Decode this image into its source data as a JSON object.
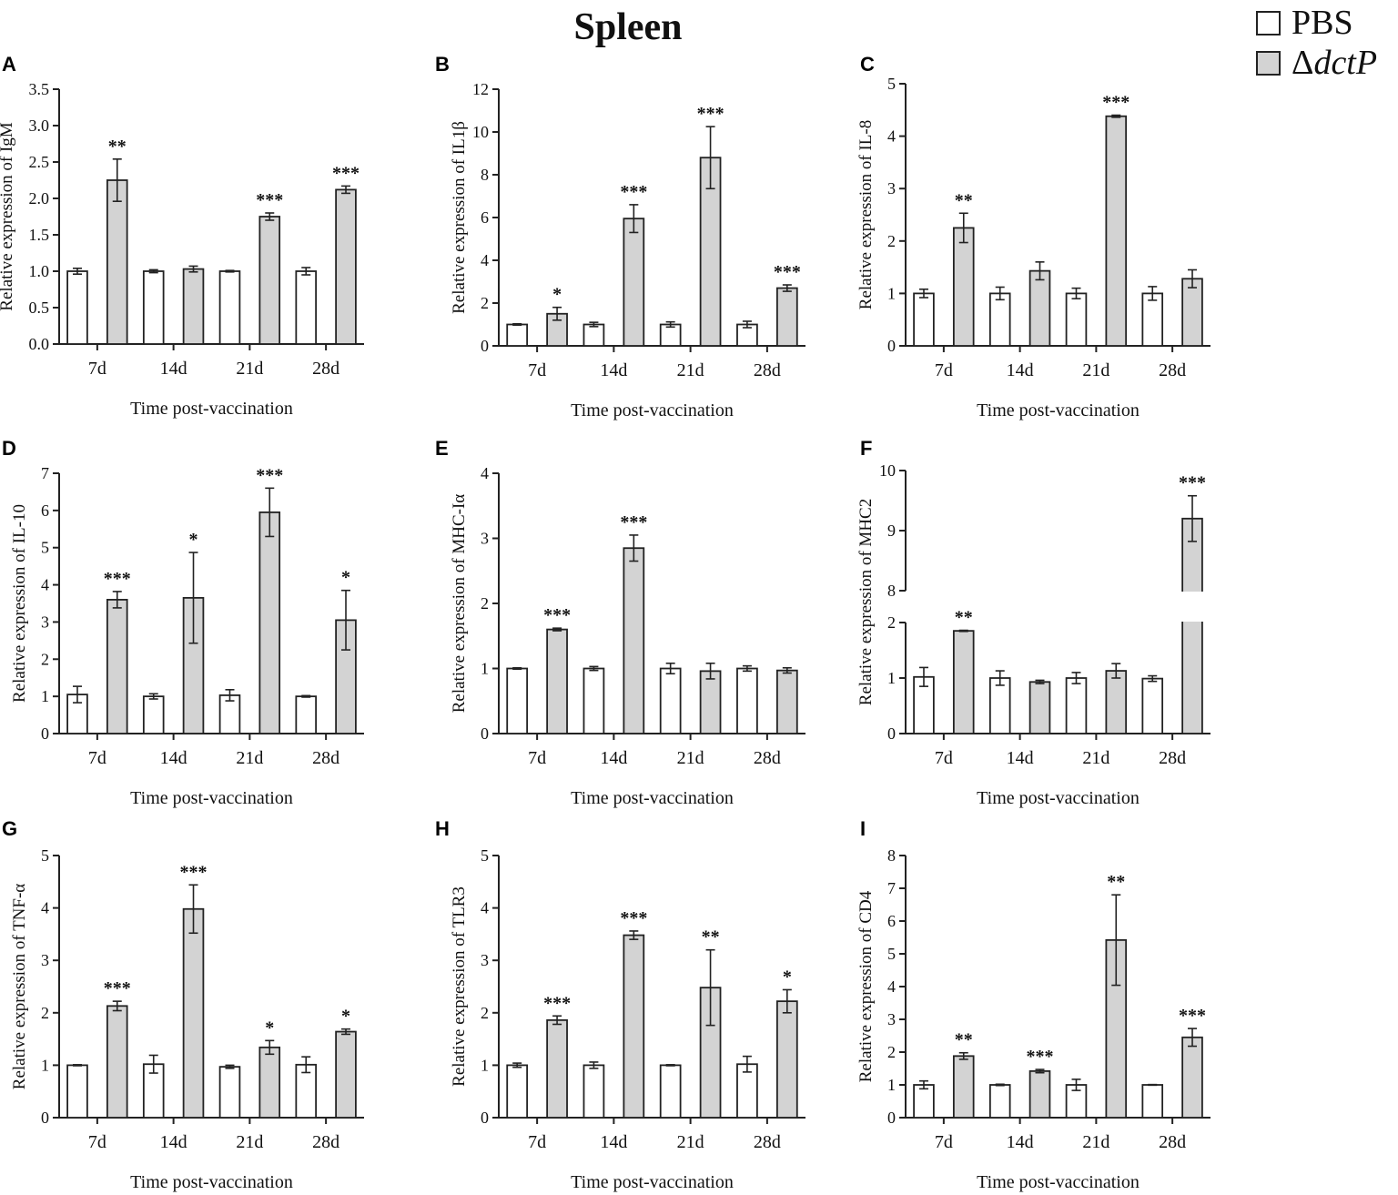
{
  "figure_title": "Spleen",
  "legend": {
    "items": [
      {
        "label": "PBS",
        "color": "#ffffff"
      },
      {
        "label_prefix": "Δ",
        "label_italic": "dctP",
        "color": "#d3d3d3"
      }
    ]
  },
  "colors": {
    "pbs": "#ffffff",
    "dctp": "#d3d3d3",
    "stroke": "#222222"
  },
  "chart_data": [
    {
      "letter": "A",
      "type": "bar",
      "ylabel": "Relative expression of IgM",
      "xlabel": "Time post-vaccination",
      "categories": [
        "7d",
        "14d",
        "21d",
        "28d"
      ],
      "ylim": [
        0,
        3.5
      ],
      "yticks": [
        "0.0",
        "0.5",
        "1.0",
        "1.5",
        "2.0",
        "2.5",
        "3.0",
        "3.5"
      ],
      "series": [
        {
          "name": "PBS",
          "values": [
            1.0,
            1.0,
            1.0,
            1.0
          ],
          "errors": [
            0.04,
            0.02,
            0.01,
            0.05
          ]
        },
        {
          "name": "ΔdctP",
          "values": [
            2.25,
            1.03,
            1.75,
            2.12
          ],
          "errors": [
            0.29,
            0.04,
            0.05,
            0.05
          ]
        }
      ],
      "significance": [
        "**",
        "",
        "***",
        "***"
      ]
    },
    {
      "letter": "B",
      "type": "bar",
      "ylabel": "Relative expression of IL1β",
      "xlabel": "Time post-vaccination",
      "categories": [
        "7d",
        "14d",
        "21d",
        "28d"
      ],
      "ylim": [
        0,
        12
      ],
      "yticks": [
        "0",
        "2",
        "4",
        "6",
        "8",
        "10",
        "12"
      ],
      "series": [
        {
          "name": "PBS",
          "values": [
            1.0,
            1.0,
            1.0,
            1.0
          ],
          "errors": [
            0.03,
            0.1,
            0.12,
            0.15
          ]
        },
        {
          "name": "ΔdctP",
          "values": [
            1.5,
            5.95,
            8.8,
            2.7
          ],
          "errors": [
            0.3,
            0.65,
            1.45,
            0.15
          ]
        }
      ],
      "significance": [
        "*",
        "***",
        "***",
        "***"
      ]
    },
    {
      "letter": "C",
      "type": "bar",
      "ylabel": "Relative expression of IL-8",
      "xlabel": "Time post-vaccination",
      "categories": [
        "7d",
        "14d",
        "21d",
        "28d"
      ],
      "ylim": [
        0,
        5
      ],
      "yticks": [
        "0",
        "1",
        "2",
        "3",
        "4",
        "5"
      ],
      "series": [
        {
          "name": "PBS",
          "values": [
            1.0,
            1.0,
            1.0,
            1.0
          ],
          "errors": [
            0.08,
            0.12,
            0.1,
            0.13
          ]
        },
        {
          "name": "ΔdctP",
          "values": [
            2.25,
            1.43,
            4.38,
            1.28
          ],
          "errors": [
            0.28,
            0.17,
            0.02,
            0.17
          ]
        }
      ],
      "significance": [
        "**",
        "",
        "***",
        ""
      ]
    },
    {
      "letter": "D",
      "type": "bar",
      "ylabel": "Relative expression of IL-10",
      "xlabel": "Time post-vaccination",
      "categories": [
        "7d",
        "14d",
        "21d",
        "28d"
      ],
      "ylim": [
        0,
        7
      ],
      "yticks": [
        "0",
        "1",
        "2",
        "3",
        "4",
        "5",
        "6",
        "7"
      ],
      "series": [
        {
          "name": "PBS",
          "values": [
            1.05,
            1.0,
            1.03,
            1.0
          ],
          "errors": [
            0.22,
            0.07,
            0.15,
            0.02
          ]
        },
        {
          "name": "ΔdctP",
          "values": [
            3.6,
            3.65,
            5.95,
            3.05
          ],
          "errors": [
            0.22,
            1.22,
            0.65,
            0.8
          ]
        }
      ],
      "significance": [
        "***",
        "*",
        "***",
        "*"
      ]
    },
    {
      "letter": "E",
      "type": "bar",
      "ylabel": "Relative expression of MHC-Iα",
      "xlabel": "Time post-vaccination",
      "categories": [
        "7d",
        "14d",
        "21d",
        "28d"
      ],
      "ylim": [
        0,
        4
      ],
      "yticks": [
        "0",
        "1",
        "2",
        "3",
        "4"
      ],
      "series": [
        {
          "name": "PBS",
          "values": [
            1.0,
            1.0,
            1.0,
            1.0
          ],
          "errors": [
            0.01,
            0.03,
            0.08,
            0.04
          ]
        },
        {
          "name": "ΔdctP",
          "values": [
            1.6,
            2.85,
            0.96,
            0.97
          ],
          "errors": [
            0.02,
            0.2,
            0.12,
            0.04
          ]
        }
      ],
      "significance": [
        "***",
        "***",
        "",
        ""
      ]
    },
    {
      "letter": "F",
      "type": "bar",
      "ylabel": "Relative expression of MHC2",
      "xlabel": "Time post-vaccination",
      "categories": [
        "7d",
        "14d",
        "21d",
        "28d"
      ],
      "ylim": [
        0,
        10
      ],
      "axis_break": {
        "lower": [
          0,
          2
        ],
        "upper": [
          8,
          10
        ]
      },
      "yticks": [
        "0",
        "1",
        "2",
        "8",
        "9",
        "10"
      ],
      "series": [
        {
          "name": "PBS",
          "values": [
            1.02,
            1.0,
            1.0,
            0.99
          ],
          "errors": [
            0.17,
            0.13,
            0.1,
            0.05
          ]
        },
        {
          "name": "ΔdctP",
          "values": [
            1.85,
            0.93,
            1.13,
            9.2
          ],
          "errors": [
            0.01,
            0.03,
            0.13,
            0.38
          ]
        }
      ],
      "significance": [
        "**",
        "",
        "",
        "***"
      ]
    },
    {
      "letter": "G",
      "type": "bar",
      "ylabel": "Relative expression of TNF-α",
      "xlabel": "Time post-vaccination",
      "categories": [
        "7d",
        "14d",
        "21d",
        "28d"
      ],
      "ylim": [
        0,
        5
      ],
      "yticks": [
        "0",
        "1",
        "2",
        "3",
        "4",
        "5"
      ],
      "series": [
        {
          "name": "PBS",
          "values": [
            1.0,
            1.02,
            0.97,
            1.01
          ],
          "errors": [
            0.01,
            0.17,
            0.03,
            0.15
          ]
        },
        {
          "name": "ΔdctP",
          "values": [
            2.13,
            3.98,
            1.34,
            1.64
          ],
          "errors": [
            0.09,
            0.46,
            0.13,
            0.05
          ]
        }
      ],
      "significance": [
        "***",
        "***",
        "*",
        "*"
      ]
    },
    {
      "letter": "H",
      "type": "bar",
      "ylabel": "Relative expression of TLR3",
      "xlabel": "Time post-vaccination",
      "categories": [
        "7d",
        "14d",
        "21d",
        "28d"
      ],
      "ylim": [
        0,
        5
      ],
      "yticks": [
        "0",
        "1",
        "2",
        "3",
        "4",
        "5"
      ],
      "series": [
        {
          "name": "PBS",
          "values": [
            1.0,
            1.0,
            1.0,
            1.02
          ],
          "errors": [
            0.04,
            0.06,
            0.01,
            0.15
          ]
        },
        {
          "name": "ΔdctP",
          "values": [
            1.86,
            3.48,
            2.48,
            2.22
          ],
          "errors": [
            0.08,
            0.08,
            0.72,
            0.22
          ]
        }
      ],
      "significance": [
        "***",
        "***",
        "**",
        "*"
      ]
    },
    {
      "letter": "I",
      "type": "bar",
      "ylabel": "Relative expression of CD4",
      "xlabel": "Time post-vaccination",
      "categories": [
        "7d",
        "14d",
        "21d",
        "28d"
      ],
      "ylim": [
        0,
        8
      ],
      "yticks": [
        "0",
        "1",
        "2",
        "3",
        "4",
        "5",
        "6",
        "7",
        "8"
      ],
      "series": [
        {
          "name": "PBS",
          "values": [
            1.0,
            1.0,
            1.0,
            1.0
          ],
          "errors": [
            0.12,
            0.02,
            0.17,
            0.01
          ]
        },
        {
          "name": "ΔdctP",
          "values": [
            1.88,
            1.42,
            5.42,
            2.45
          ],
          "errors": [
            0.1,
            0.05,
            1.38,
            0.27
          ]
        }
      ],
      "significance": [
        "**",
        "***",
        "**",
        "***"
      ]
    }
  ]
}
